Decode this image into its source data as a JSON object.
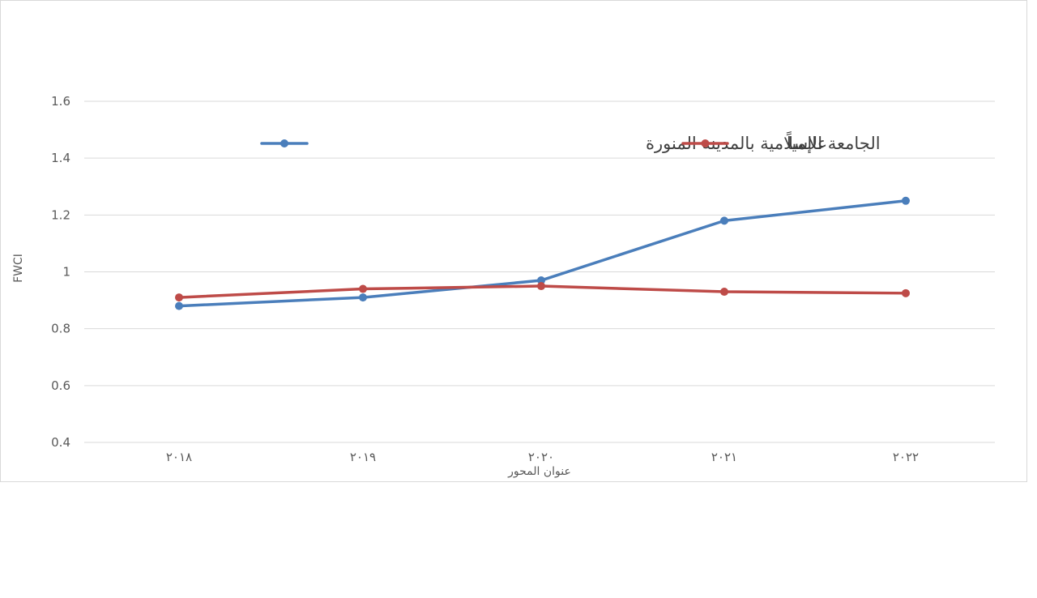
{
  "chart_data": {
    "type": "line",
    "title": "",
    "xlabel": "عنوان المحور",
    "ylabel": "FWCI",
    "categories": [
      "٢٠١٨",
      "٢٠١٩",
      "٢٠٢٠",
      "٢٠٢١",
      "٢٠٢٢"
    ],
    "yticks": [
      "0.4",
      "0.6",
      "0.8",
      "1",
      "1.2",
      "1.4",
      "1.6"
    ],
    "ylim": [
      0.4,
      1.6
    ],
    "grid": true,
    "legend_position": "top",
    "series": [
      {
        "name": "الجامعة الإسلامية بالمدينة المنورة",
        "color": "#4a7ebb",
        "values": [
          0.88,
          0.91,
          0.97,
          1.18,
          1.25
        ]
      },
      {
        "name": "عالمياً",
        "color": "#be4b48",
        "values": [
          0.91,
          0.94,
          0.95,
          0.93,
          0.925
        ]
      }
    ]
  }
}
